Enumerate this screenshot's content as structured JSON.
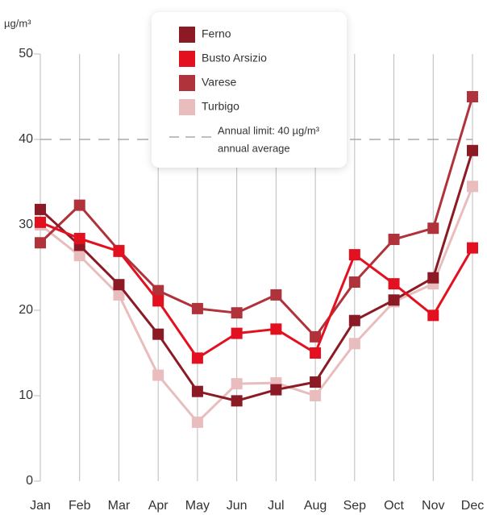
{
  "chart_data": {
    "type": "line",
    "y_label": "µg/m³",
    "categories": [
      "Jan",
      "Feb",
      "Mar",
      "Apr",
      "May",
      "Jun",
      "Jul",
      "Aug",
      "Sep",
      "Oct",
      "Nov",
      "Dec"
    ],
    "series": [
      {
        "name": "Ferno",
        "color": "#8b1a24",
        "values": [
          31.8,
          27.6,
          23,
          17.2,
          10.5,
          9.4,
          10.7,
          11.6,
          18.8,
          21.2,
          23.8,
          38.7
        ]
      },
      {
        "name": "Busto Arsizio",
        "color": "#e3101f",
        "values": [
          30.3,
          28.4,
          26.9,
          21.1,
          14.4,
          17.3,
          17.8,
          15,
          26.5,
          23.1,
          19.4,
          27.3
        ]
      },
      {
        "name": "Varese",
        "color": "#b0323a",
        "values": [
          27.9,
          32.3,
          27,
          22.3,
          20.2,
          19.7,
          21.8,
          16.9,
          23.3,
          28.3,
          29.6,
          45
        ]
      },
      {
        "name": "Turbigo",
        "color": "#e9bcbd",
        "values": [
          30,
          26.4,
          21.8,
          12.4,
          6.9,
          11.4,
          11.5,
          10,
          16.1,
          21,
          23.1,
          34.5
        ]
      }
    ],
    "limit": {
      "value": 40,
      "label": [
        "Annual limit: 40 µg/m³",
        "annual average"
      ]
    },
    "ylim": [
      0,
      50
    ],
    "yticks": [
      0,
      10,
      20,
      30,
      40,
      50
    ],
    "grid": true
  }
}
